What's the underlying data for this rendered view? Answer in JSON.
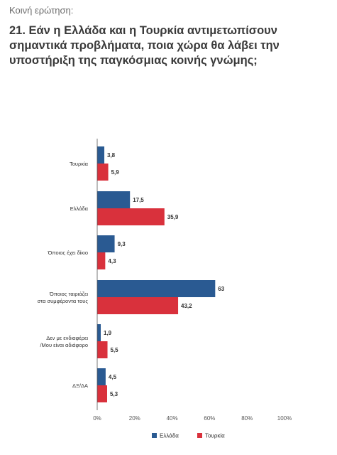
{
  "header": {
    "kicker": "Κοινή ερώτηση:",
    "title": "21. Εάν η Ελλάδα και η Τουρκία αντιμετωπίσουν σημαντικά προβλήματα, ποια χώρα θα λάβει την υποστήριξη της παγκόσμιας κοινής γνώμης;"
  },
  "chart_data": {
    "type": "bar",
    "orientation": "horizontal",
    "categories": [
      [
        "Τουρκία"
      ],
      [
        "Ελλάδα"
      ],
      [
        "Όποιος έχει δίκιο"
      ],
      [
        "Όποιος ταιριάζει",
        "στα συμφέροντα τους"
      ],
      [
        "Δεν με ενδιαφέρει",
        "/Μου είναι αδιάφορο"
      ],
      [
        "ΔΞ/ΔΑ"
      ]
    ],
    "series": [
      {
        "name": "Ελλάδα",
        "color": "#2a5a92",
        "values": [
          3.8,
          17.5,
          9.3,
          63,
          1.9,
          4.5
        ],
        "labels": [
          "3,8",
          "17,5",
          "9,3",
          "63",
          "1,9",
          "4,5"
        ]
      },
      {
        "name": "Τουρκία",
        "color": "#d9313c",
        "values": [
          5.9,
          35.9,
          4.3,
          43.2,
          5.5,
          5.3
        ],
        "labels": [
          "5,9",
          "35,9",
          "4,3",
          "43,2",
          "5,5",
          "5,3"
        ]
      }
    ],
    "xlim": [
      0,
      100
    ],
    "xticks": [
      "0%",
      "20%",
      "40%",
      "60%",
      "80%",
      "100%"
    ],
    "legend_position": "bottom",
    "grid": false
  }
}
